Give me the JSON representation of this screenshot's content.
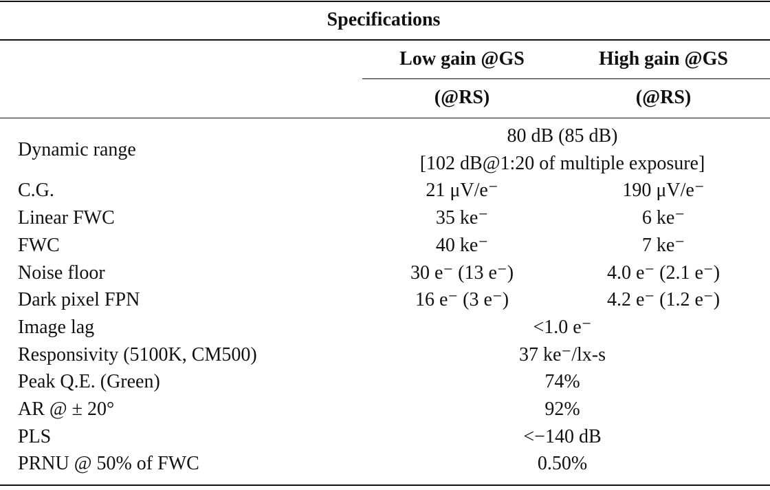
{
  "title": "Specifications",
  "columns": [
    {
      "header": "Low gain @GS",
      "sub": "(@RS)"
    },
    {
      "header": "High gain @GS",
      "sub": "(@RS)"
    }
  ],
  "rows": [
    {
      "label": "Dynamic range",
      "merged": [
        "80 dB (85 dB)",
        "[102 dB@1:20 of multiple exposure]"
      ]
    },
    {
      "label": "C.G.",
      "values": [
        "21 μV/e⁻",
        "190 μV/e⁻"
      ]
    },
    {
      "label": "Linear FWC",
      "values": [
        "35 ke⁻",
        "6 ke⁻"
      ]
    },
    {
      "label": "FWC",
      "values": [
        "40 ke⁻",
        "7 ke⁻"
      ]
    },
    {
      "label": "Noise floor",
      "values": [
        "30 e⁻ (13 e⁻)",
        "4.0 e⁻ (2.1 e⁻)"
      ]
    },
    {
      "label": "Dark pixel FPN",
      "values": [
        "16 e⁻ (3 e⁻)",
        "4.2 e⁻ (1.2 e⁻)"
      ]
    },
    {
      "label": "Image lag",
      "merged": [
        "<1.0 e⁻"
      ]
    },
    {
      "label": "Responsivity (5100K, CM500)",
      "merged": [
        "37 ke⁻/lx-s"
      ]
    },
    {
      "label": "Peak Q.E. (Green)",
      "merged": [
        "74%"
      ]
    },
    {
      "label": "AR @ ± 20°",
      "merged": [
        "92%"
      ]
    },
    {
      "label": "PLS",
      "merged": [
        "<−140 dB"
      ]
    },
    {
      "label": "PRNU @ 50% of FWC",
      "merged": [
        "0.50%"
      ]
    }
  ]
}
